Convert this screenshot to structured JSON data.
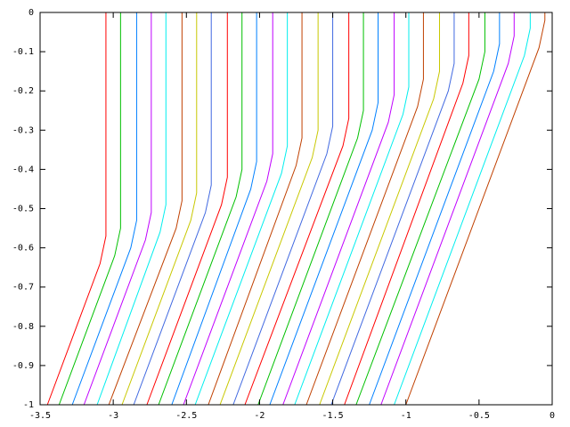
{
  "chart_data": {
    "type": "line",
    "xlim": [
      -3.5,
      0
    ],
    "ylim": [
      -1,
      0
    ],
    "xticks": [
      -3.5,
      -3,
      -2.5,
      -2,
      -1.5,
      -1,
      -0.5,
      0
    ],
    "yticks": [
      0,
      -0.1,
      -0.2,
      -0.3,
      -0.4,
      -0.5,
      -0.6,
      -0.7,
      -0.8,
      -0.9,
      -1
    ],
    "series": [
      {
        "color": "#ff0000",
        "x": [
          -3.05,
          -3.05,
          -3.09,
          -3.45
        ],
        "values": [
          0,
          -0.57,
          -0.64,
          -1
        ]
      },
      {
        "color": "#00c000",
        "x": [
          -2.95,
          -2.95,
          -2.99,
          -3.37
        ],
        "values": [
          0,
          -0.55,
          -0.62,
          -1
        ]
      },
      {
        "color": "#0080ff",
        "x": [
          -2.84,
          -2.84,
          -2.88,
          -3.28
        ],
        "values": [
          0,
          -0.53,
          -0.6,
          -1
        ]
      },
      {
        "color": "#c000ff",
        "x": [
          -2.74,
          -2.74,
          -2.78,
          -3.2
        ],
        "values": [
          0,
          -0.51,
          -0.58,
          -1
        ]
      },
      {
        "color": "#00eeee",
        "x": [
          -2.64,
          -2.64,
          -2.68,
          -3.11
        ],
        "values": [
          0,
          -0.49,
          -0.56,
          -1
        ]
      },
      {
        "color": "#c04000",
        "x": [
          -2.53,
          -2.53,
          -2.57,
          -3.03
        ],
        "values": [
          0,
          -0.48,
          -0.55,
          -1
        ]
      },
      {
        "color": "#c8c800",
        "x": [
          -2.43,
          -2.43,
          -2.47,
          -2.94
        ],
        "values": [
          0,
          -0.46,
          -0.53,
          -1
        ]
      },
      {
        "color": "#4169e1",
        "x": [
          -2.33,
          -2.33,
          -2.37,
          -2.86
        ],
        "values": [
          0,
          -0.44,
          -0.51,
          -1
        ]
      },
      {
        "color": "#ff0000",
        "x": [
          -2.22,
          -2.22,
          -2.26,
          -2.77
        ],
        "values": [
          0,
          -0.42,
          -0.49,
          -1
        ]
      },
      {
        "color": "#00c000",
        "x": [
          -2.12,
          -2.12,
          -2.16,
          -2.69
        ],
        "values": [
          0,
          -0.4,
          -0.47,
          -1
        ]
      },
      {
        "color": "#0080ff",
        "x": [
          -2.02,
          -2.02,
          -2.06,
          -2.6
        ],
        "values": [
          0,
          -0.38,
          -0.45,
          -1
        ]
      },
      {
        "color": "#c000ff",
        "x": [
          -1.91,
          -1.91,
          -1.95,
          -2.52
        ],
        "values": [
          0,
          -0.36,
          -0.43,
          -1
        ]
      },
      {
        "color": "#00eeee",
        "x": [
          -1.81,
          -1.81,
          -1.85,
          -2.44
        ],
        "values": [
          0,
          -0.34,
          -0.41,
          -1
        ]
      },
      {
        "color": "#c04000",
        "x": [
          -1.71,
          -1.71,
          -1.75,
          -2.35
        ],
        "values": [
          0,
          -0.32,
          -0.39,
          -1
        ]
      },
      {
        "color": "#c8c800",
        "x": [
          -1.6,
          -1.6,
          -1.64,
          -2.27
        ],
        "values": [
          0,
          -0.3,
          -0.37,
          -1
        ]
      },
      {
        "color": "#4169e1",
        "x": [
          -1.5,
          -1.5,
          -1.54,
          -2.18
        ],
        "values": [
          0,
          -0.29,
          -0.36,
          -1
        ]
      },
      {
        "color": "#ff0000",
        "x": [
          -1.39,
          -1.39,
          -1.43,
          -2.1
        ],
        "values": [
          0,
          -0.27,
          -0.34,
          -1
        ]
      },
      {
        "color": "#00c000",
        "x": [
          -1.29,
          -1.29,
          -1.33,
          -2.01
        ],
        "values": [
          0,
          -0.25,
          -0.32,
          -1
        ]
      },
      {
        "color": "#0080ff",
        "x": [
          -1.19,
          -1.19,
          -1.23,
          -1.93
        ],
        "values": [
          0,
          -0.23,
          -0.3,
          -1
        ]
      },
      {
        "color": "#c000ff",
        "x": [
          -1.08,
          -1.08,
          -1.12,
          -1.84
        ],
        "values": [
          0,
          -0.21,
          -0.28,
          -1
        ]
      },
      {
        "color": "#00eeee",
        "x": [
          -0.98,
          -0.98,
          -1.02,
          -1.76
        ],
        "values": [
          0,
          -0.19,
          -0.26,
          -1
        ]
      },
      {
        "color": "#c04000",
        "x": [
          -0.88,
          -0.88,
          -0.92,
          -1.68
        ],
        "values": [
          0,
          -0.17,
          -0.24,
          -1
        ]
      },
      {
        "color": "#c8c800",
        "x": [
          -0.77,
          -0.77,
          -0.81,
          -1.59
        ],
        "values": [
          0,
          -0.15,
          -0.22,
          -1
        ]
      },
      {
        "color": "#4169e1",
        "x": [
          -0.67,
          -0.67,
          -0.71,
          -1.51
        ],
        "values": [
          0,
          -0.13,
          -0.2,
          -1
        ]
      },
      {
        "color": "#ff0000",
        "x": [
          -0.57,
          -0.57,
          -0.61,
          -1.42
        ],
        "values": [
          0,
          -0.11,
          -0.18,
          -1
        ]
      },
      {
        "color": "#00c000",
        "x": [
          -0.46,
          -0.46,
          -0.5,
          -1.34
        ],
        "values": [
          0,
          -0.1,
          -0.17,
          -1
        ]
      },
      {
        "color": "#0080ff",
        "x": [
          -0.36,
          -0.36,
          -0.4,
          -1.25
        ],
        "values": [
          0,
          -0.08,
          -0.15,
          -1
        ]
      },
      {
        "color": "#c000ff",
        "x": [
          -0.26,
          -0.26,
          -0.3,
          -1.17
        ],
        "values": [
          0,
          -0.06,
          -0.13,
          -1
        ]
      },
      {
        "color": "#00eeee",
        "x": [
          -0.15,
          -0.15,
          -0.19,
          -1.08
        ],
        "values": [
          0,
          -0.04,
          -0.11,
          -1
        ]
      },
      {
        "color": "#c04000",
        "x": [
          -0.05,
          -0.05,
          -0.09,
          -1
        ],
        "values": [
          0,
          -0.02,
          -0.09,
          -1
        ]
      }
    ]
  }
}
